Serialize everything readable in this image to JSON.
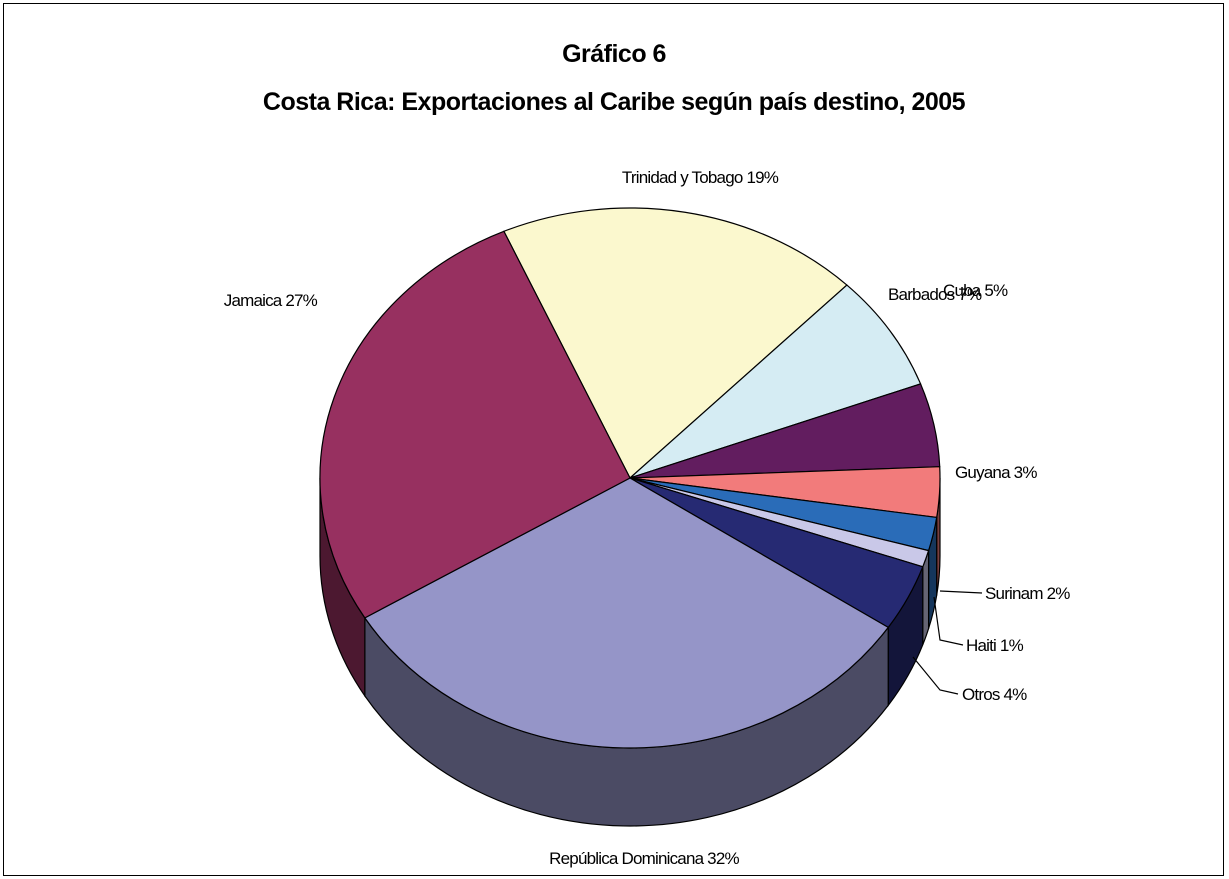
{
  "chart_data": {
    "type": "pie",
    "title": "Gráfico  6",
    "subtitle": "Costa Rica: Exportaciones al Caribe según país destino, 2005",
    "slices": [
      {
        "label": "Trinidad y Tobago 19%",
        "value": 19,
        "color": "#FBF8CE"
      },
      {
        "label": "Barbados 7%",
        "value": 7,
        "color": "#D5ECF3"
      },
      {
        "label": "Cuba 5%",
        "value": 5,
        "color": "#621D5F"
      },
      {
        "label": "Guyana 3%",
        "value": 3,
        "color": "#F27B7B"
      },
      {
        "label": "Surinam 2%",
        "value": 2,
        "color": "#2A6CB8"
      },
      {
        "label": "Haiti 1%",
        "value": 1,
        "color": "#C9C8E8"
      },
      {
        "label": "Otros 4%",
        "value": 4,
        "color": "#262A73"
      },
      {
        "label": "República Dominicana 32%",
        "value": 32,
        "color": "#9595C8"
      },
      {
        "label": "Jamaica 27%",
        "value": 27,
        "color": "#973060"
      }
    ],
    "legend": "none",
    "three_d": true
  }
}
